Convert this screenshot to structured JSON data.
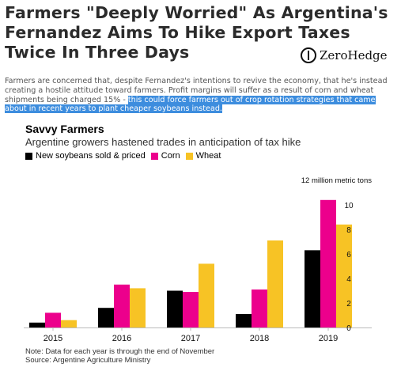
{
  "article": {
    "headline": "Farmers \"Deeply Worried\" As Argentina's Fernandez Aims To Hike Export Taxes Twice In Three Days",
    "brand": "ZeroHedge",
    "intro_text": "Farmers are concerned that, despite Fernandez's intentions to revive the economy, that he's instead creating a hostile attitude toward farmers. Profit margins will suffer as a result of corn and wheat shipments being charged 15% - ",
    "intro_highlight": "this could force farmers out of crop rotation strategies that came about in recent years to plant cheaper soybeans instead."
  },
  "chart_data": {
    "type": "bar",
    "title": "Savvy Farmers",
    "subtitle": "Argentine growers hastened trades in anticipation of tax hike",
    "ylabel": "12 million metric tons",
    "categories": [
      "2015",
      "2016",
      "2017",
      "2018",
      "2019"
    ],
    "series": [
      {
        "name": "New soybeans sold & priced",
        "color": "#000000",
        "values": [
          0.4,
          1.6,
          3.0,
          1.1,
          6.3
        ]
      },
      {
        "name": "Corn",
        "color": "#ec008c",
        "values": [
          1.2,
          3.5,
          2.9,
          3.1,
          10.4
        ]
      },
      {
        "name": "Wheat",
        "color": "#f7c325",
        "values": [
          0.6,
          3.2,
          5.2,
          7.1,
          8.4
        ]
      }
    ],
    "ylim": [
      0,
      12
    ],
    "yticks": [
      0,
      2,
      4,
      6,
      8,
      10
    ],
    "grid": false,
    "legend_position": "top-left",
    "note": "Note: Data for each year is through the end of November",
    "source": "Source: Argentine Agriculture Ministry"
  }
}
